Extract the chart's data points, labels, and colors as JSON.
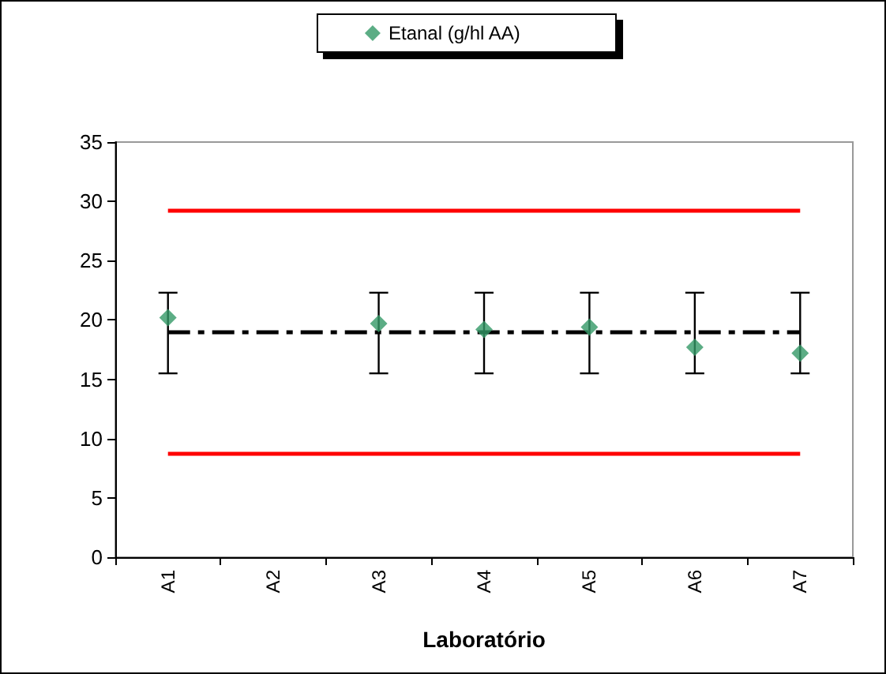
{
  "chart_data": {
    "type": "scatter",
    "xlabel": "Laboratório",
    "categories": [
      "A1",
      "A2",
      "A3",
      "A4",
      "A5",
      "A6",
      "A7"
    ],
    "series": [
      {
        "name": "Etanal (g/hl AA)",
        "color": "#339966",
        "values": [
          20.2,
          null,
          19.7,
          19.2,
          19.4,
          17.7,
          17.2
        ],
        "errors": [
          [
            15.5,
            22.3
          ],
          null,
          [
            15.5,
            22.3
          ],
          [
            15.5,
            22.3
          ],
          [
            15.5,
            22.3
          ],
          [
            15.5,
            22.3
          ],
          [
            15.5,
            22.3
          ]
        ]
      }
    ],
    "marker": "diamond",
    "ylim": [
      0,
      35
    ],
    "yticks": [
      0,
      5,
      10,
      15,
      20,
      25,
      30,
      35
    ],
    "ref_lines": [
      {
        "axis": "y",
        "value": 29.2,
        "color": "#ff0000",
        "line_style": "solid"
      },
      {
        "axis": "y",
        "value": 19.0,
        "color": "#000000",
        "line_style": "dashed"
      },
      {
        "axis": "y",
        "value": 8.8,
        "color": "#ff0000",
        "line_style": "solid"
      }
    ],
    "grid": false,
    "legend": "top"
  }
}
